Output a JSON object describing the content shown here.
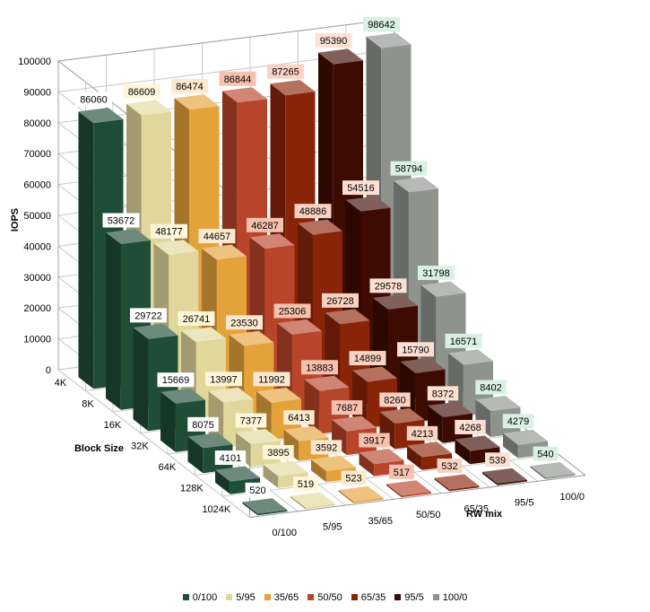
{
  "chart_data": {
    "type": "bar",
    "variant": "3d-column",
    "title": "",
    "ylabel": "IOPS",
    "xlabel": "Block Size",
    "zlabel": "RW mix",
    "ylim": [
      0,
      100000
    ],
    "yticks": [
      0,
      10000,
      20000,
      30000,
      40000,
      50000,
      60000,
      70000,
      80000,
      90000,
      100000
    ],
    "grid": true,
    "legend_position": "bottom",
    "categories": [
      "4K",
      "8K",
      "16K",
      "32K",
      "64K",
      "128K",
      "1024K"
    ],
    "series": [
      {
        "name": "0/100",
        "color": "#1f4d36",
        "label_bg": "#ffffff",
        "values": [
          86060,
          53672,
          29722,
          15669,
          8075,
          4101,
          520
        ]
      },
      {
        "name": "5/95",
        "color": "#e2d79a",
        "label_bg": "#fef6d9",
        "values": [
          86609,
          48177,
          26741,
          13997,
          7377,
          3895,
          519
        ]
      },
      {
        "name": "35/65",
        "color": "#e4a23a",
        "label_bg": "#fce9cf",
        "values": [
          86474,
          44657,
          23530,
          11992,
          6413,
          3592,
          523
        ]
      },
      {
        "name": "50/50",
        "color": "#b8452a",
        "label_bg": "#f6c1ae",
        "values": [
          86844,
          46287,
          25306,
          13883,
          7687,
          3917,
          517
        ]
      },
      {
        "name": "65/35",
        "color": "#8a2408",
        "label_bg": "#fad2c2",
        "values": [
          87265,
          48886,
          26728,
          14899,
          8260,
          4213,
          532
        ]
      },
      {
        "name": "95/5",
        "color": "#3d0b02",
        "label_bg": "#fde0d4",
        "values": [
          95390,
          54516,
          29578,
          15790,
          8372,
          4268,
          539
        ]
      },
      {
        "name": "100/0",
        "color": "#8f938e",
        "label_bg": "#d9f0e4",
        "values": [
          98642,
          58794,
          31798,
          16571,
          8402,
          4279,
          540
        ]
      }
    ]
  }
}
